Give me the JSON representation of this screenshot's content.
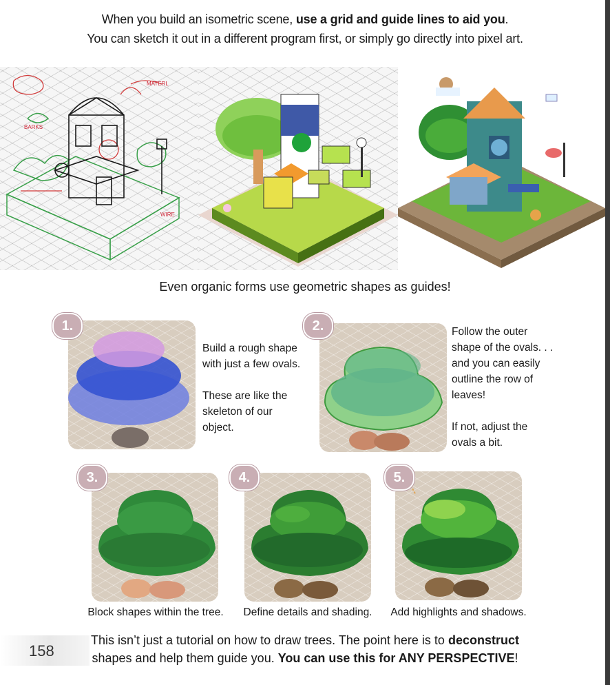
{
  "intro": {
    "line1_pre": "When you build an isometric scene, ",
    "line1_bold": "use a grid and guide lines to aid you",
    "line1_post": ".",
    "line2": "You can sketch it out in a different program first, or simply go directly into pixel art."
  },
  "subtitle": "Even organic forms use geometric shapes as guides!",
  "steps": [
    {
      "num": "1.",
      "lines": [
        "Build a rough shape",
        "with just a few ovals.",
        "",
        "These are like the",
        "skeleton of our",
        "object."
      ]
    },
    {
      "num": "2.",
      "lines": [
        "Follow the outer",
        "shape of the ovals. . .",
        "and you can easily",
        "outline the row of",
        "leaves!",
        "",
        "If not, adjust the",
        "ovals a bit."
      ]
    },
    {
      "num": "3.",
      "caption": "Block shapes within the tree."
    },
    {
      "num": "4.",
      "caption": "Define details and shading."
    },
    {
      "num": "5.",
      "caption": "Add highlights and shadows."
    }
  ],
  "sketch": {
    "labels": [
      "BARKS",
      "MATERL",
      "WIRE"
    ]
  },
  "footer": {
    "line1_pre": "This isn’t just a tutorial on how to draw trees. The point here is to ",
    "line1_bold": "deconstruct",
    "line2_pre": "shapes and help them guide you. ",
    "line2_bold": "You can use this for ANY PERSPECTIVE",
    "line2_post": "!"
  },
  "page_number": "158",
  "colors": {
    "badge": "#c9aeb4",
    "leaf_light": "#8fd18a",
    "leaf_dark": "#2f8a3a",
    "oval_blue": "#2e4fd0",
    "oval_purple": "#c58ad6",
    "trunk": "#c9896a"
  }
}
